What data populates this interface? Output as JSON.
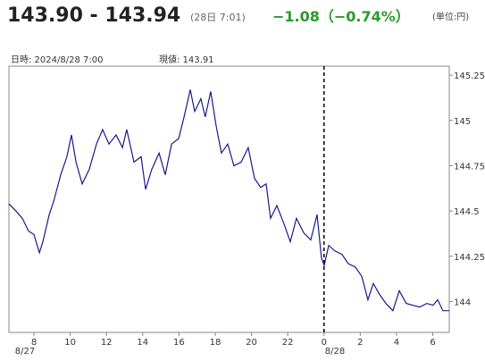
{
  "header": {
    "price": "143.90 - 143.94",
    "time": "(28日 7:01)",
    "change": "−1.08（−0.74%）",
    "unit": "(単位:円)"
  },
  "info": {
    "datetime": "日時: 2024/8/28  7:00",
    "current": "現値: 143.91"
  },
  "chart_data": {
    "type": "line",
    "date_labels": [
      "8/27",
      "8/28"
    ],
    "x": [
      6.62,
      7.01,
      7.36,
      7.7,
      8.0,
      8.3,
      8.49,
      8.84,
      9.08,
      9.48,
      9.82,
      10.07,
      10.32,
      10.66,
      11.05,
      11.45,
      11.79,
      12.14,
      12.53,
      12.88,
      13.12,
      13.52,
      13.91,
      14.16,
      14.5,
      14.9,
      15.24,
      15.59,
      15.98,
      16.28,
      16.62,
      16.87,
      17.21,
      17.45,
      17.75,
      18.05,
      18.34,
      18.69,
      19.03,
      19.43,
      19.82,
      20.17,
      20.51,
      20.81,
      21.05,
      21.4,
      21.79,
      22.14,
      22.48,
      22.88,
      23.27,
      23.62,
      23.86,
      24.01,
      24.26,
      24.6,
      25.0,
      25.34,
      25.73,
      26.08,
      26.42,
      26.72,
      27.06,
      27.41,
      27.8,
      28.15,
      28.54,
      28.89,
      29.28,
      29.67,
      30.02,
      30.27,
      30.56,
      30.91
    ],
    "series": [
      {
        "color": "#1a1a8c",
        "values": [
          144.54,
          144.5,
          144.46,
          144.39,
          144.37,
          144.27,
          144.33,
          144.48,
          144.55,
          144.7,
          144.8,
          144.92,
          144.77,
          144.65,
          144.73,
          144.87,
          144.95,
          144.87,
          144.92,
          144.85,
          144.95,
          144.77,
          144.8,
          144.62,
          144.73,
          144.82,
          144.7,
          144.87,
          144.9,
          145.02,
          145.17,
          145.05,
          145.12,
          145.02,
          145.16,
          144.97,
          144.82,
          144.87,
          144.75,
          144.77,
          144.85,
          144.68,
          144.63,
          144.65,
          144.46,
          144.53,
          144.43,
          144.33,
          144.46,
          144.38,
          144.34,
          144.48,
          144.24,
          144.2,
          144.31,
          144.28,
          144.26,
          144.21,
          144.19,
          144.14,
          144.01,
          144.1,
          144.04,
          143.99,
          143.95,
          144.06,
          143.99,
          143.98,
          143.97,
          143.99,
          143.98,
          144.01,
          143.95,
          143.95
        ]
      }
    ],
    "xlim": [
      6.62,
      30.91
    ],
    "xticks": [
      8,
      10,
      12,
      14,
      16,
      18,
      20,
      22,
      {
        "value": 24,
        "label": "0"
      },
      {
        "value": 26,
        "label": "2"
      },
      {
        "value": 28,
        "label": "4"
      },
      {
        "value": 30,
        "label": "6"
      }
    ],
    "ylim": [
      143.83,
      145.3
    ],
    "yticks": [
      144,
      144.25,
      144.5,
      144.75,
      145,
      145.25
    ],
    "marker_x": 24
  }
}
